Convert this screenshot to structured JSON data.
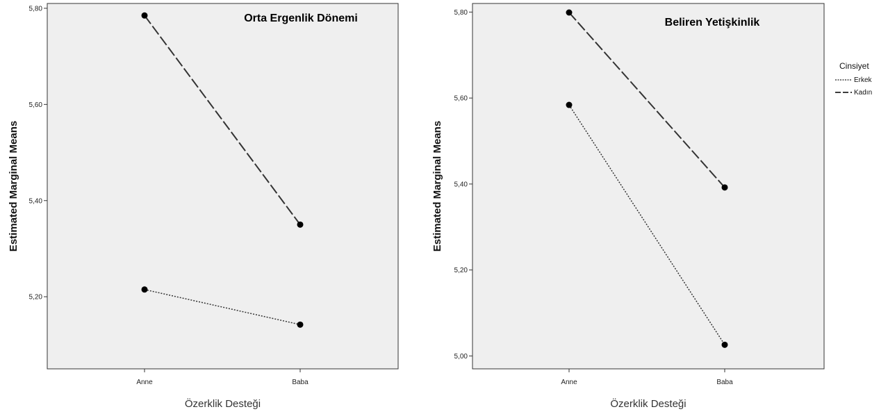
{
  "chart_data": [
    {
      "type": "line",
      "title": "Orta Ergenlik Dönemi",
      "xlabel": "Özerklik Desteği",
      "ylabel": "Estimated Marginal Means",
      "categories": [
        "Anne",
        "Baba"
      ],
      "yticks": [
        "5,20",
        "5,40",
        "5,60",
        "5,80"
      ],
      "ytick_values": [
        5.2,
        5.4,
        5.6,
        5.8
      ],
      "ylim": [
        5.05,
        5.81
      ],
      "series": [
        {
          "name": "Erkek",
          "values": [
            5.215,
            5.142
          ],
          "style": "dotted"
        },
        {
          "name": "Kadın",
          "values": [
            5.785,
            5.35
          ],
          "style": "dashed"
        }
      ]
    },
    {
      "type": "line",
      "title": "Beliren Yetişkinlik",
      "xlabel": "Özerklik Desteği",
      "ylabel": "Estimated Marginal Means",
      "categories": [
        "Anne",
        "Baba"
      ],
      "yticks": [
        "5,00",
        "5,20",
        "5,40",
        "5,60",
        "5,80"
      ],
      "ytick_values": [
        5.0,
        5.2,
        5.4,
        5.6,
        5.8
      ],
      "ylim": [
        4.97,
        5.82
      ],
      "series": [
        {
          "name": "Erkek",
          "values": [
            5.584,
            5.026
          ],
          "style": "dotted"
        },
        {
          "name": "Kadın",
          "values": [
            5.799,
            5.392
          ],
          "style": "dashed"
        }
      ]
    }
  ],
  "legend": {
    "title": "Cinsiyet",
    "items": [
      {
        "label": "Erkek",
        "style": "dotted"
      },
      {
        "label": "Kadın",
        "style": "dashed"
      }
    ],
    "placement": "right"
  },
  "colors": {
    "plot_background": "#efefef",
    "line": "#333333",
    "marker": "#000000"
  }
}
